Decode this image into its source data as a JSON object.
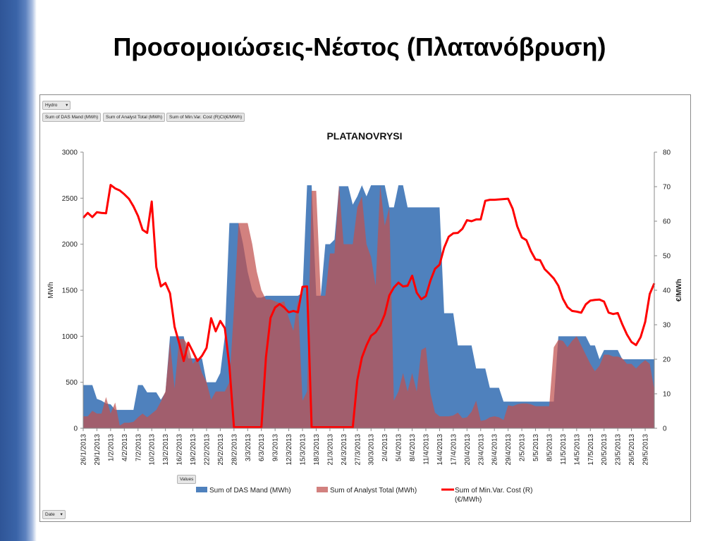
{
  "slide": {
    "title": "Προσομοιώσεις-Νέστος (Πλατανόβρυση)"
  },
  "pivot": {
    "filter_field": "Hydro",
    "value_fields": [
      "Sum of DAS Mand  (MWh)",
      "Sum of Analyst Total (MWh)",
      "Sum of Min.Var. Cost (R)CI(€/MWh)"
    ],
    "values_button": "Values",
    "date_button": "Date"
  },
  "chart_data": {
    "type": "area",
    "title": "PLATANOVRYSI",
    "ylabel": "MWh",
    "y2label": "€/MWh",
    "ylim": [
      0,
      3000
    ],
    "y2lim": [
      0,
      80
    ],
    "yticks": [
      0,
      500,
      1000,
      1500,
      2000,
      2500,
      3000
    ],
    "y2ticks": [
      0,
      10,
      20,
      30,
      40,
      50,
      60,
      70,
      80
    ],
    "grid": false,
    "legend": "bottom",
    "x_tick_labels": [
      "26/1/2013",
      "29/1/2013",
      "1/2/2013",
      "4/2/2013",
      "7/2/2013",
      "10/2/2013",
      "13/2/2013",
      "16/2/2013",
      "19/2/2013",
      "22/2/2013",
      "25/2/2013",
      "28/2/2013",
      "3/3/2013",
      "6/3/2013",
      "9/3/2013",
      "12/3/2013",
      "15/3/2013",
      "18/3/2013",
      "21/3/2013",
      "24/3/2013",
      "27/3/2013",
      "30/3/2013",
      "2/4/2013",
      "5/4/2013",
      "8/4/2013",
      "11/4/2013",
      "14/4/2013",
      "17/4/2013",
      "20/4/2013",
      "23/4/2013",
      "26/4/2013",
      "29/4/2013",
      "2/5/2013",
      "5/5/2013",
      "8/5/2013",
      "11/5/2013",
      "14/5/2013",
      "17/5/2013",
      "20/5/2013",
      "23/5/2013",
      "26/5/2013",
      "29/5/2013"
    ],
    "x_start": "26/1/2013",
    "series": [
      {
        "name": "Sum of DAS Mand  (MWh)",
        "type": "area",
        "axis": "left",
        "color": "#4f81bd",
        "values": [
          470,
          470,
          470,
          320,
          300,
          270,
          260,
          200,
          200,
          200,
          200,
          200,
          470,
          470,
          390,
          390,
          390,
          310,
          390,
          1000,
          1000,
          1000,
          1000,
          760,
          760,
          760,
          760,
          500,
          500,
          500,
          600,
          1000,
          2230,
          2230,
          2230,
          2000,
          1700,
          1500,
          1420,
          1420,
          1440,
          1440,
          1440,
          1440,
          1440,
          1440,
          1440,
          1440,
          1470,
          2640,
          2640,
          1440,
          1440,
          2000,
          2000,
          2050,
          2630,
          2630,
          2630,
          2430,
          2520,
          2640,
          2520,
          2640,
          2640,
          2640,
          2640,
          2400,
          2400,
          2640,
          2640,
          2400,
          2400,
          2400,
          2400,
          2400,
          2400,
          2400,
          2400,
          1250,
          1250,
          1250,
          900,
          900,
          900,
          900,
          650,
          650,
          650,
          440,
          440,
          440,
          290,
          290,
          290,
          290,
          290,
          290,
          290,
          290,
          290,
          290,
          290,
          290,
          1000,
          1000,
          1000,
          1000,
          1000,
          1000,
          1000,
          900,
          900,
          750,
          850,
          850,
          850,
          850,
          750,
          750,
          750,
          750,
          750,
          750,
          750,
          750
        ]
      },
      {
        "name": "Sum of Analyst Total (MWh)",
        "type": "area",
        "axis": "left",
        "color": "#c0504d",
        "values": [
          130,
          130,
          190,
          160,
          160,
          340,
          160,
          280,
          30,
          60,
          60,
          70,
          120,
          160,
          120,
          160,
          200,
          290,
          400,
          940,
          430,
          970,
          970,
          900,
          700,
          760,
          600,
          500,
          310,
          400,
          400,
          400,
          500,
          1300,
          2230,
          2230,
          2230,
          2000,
          1700,
          1500,
          1400,
          1400,
          1380,
          1360,
          1380,
          1200,
          1060,
          1400,
          300,
          400,
          2580,
          2580,
          1440,
          1440,
          1900,
          1900,
          2640,
          2000,
          2000,
          2000,
          2400,
          2520,
          2000,
          1860,
          1550,
          2640,
          2200,
          2400,
          300,
          400,
          600,
          400,
          600,
          400,
          850,
          880,
          380,
          170,
          130,
          130,
          130,
          140,
          170,
          110,
          120,
          180,
          300,
          80,
          90,
          120,
          130,
          120,
          90,
          250,
          240,
          260,
          270,
          270,
          260,
          240,
          240,
          240,
          240,
          880,
          960,
          950,
          880,
          950,
          1000,
          900,
          800,
          700,
          620,
          680,
          800,
          800,
          780,
          780,
          760,
          700,
          700,
          650,
          700,
          740,
          700,
          420
        ]
      },
      {
        "name": "Sum of Min.Var. Cost (R)\n(€/MWh)",
        "type": "line",
        "axis": "right",
        "color": "#ff0000",
        "values": [
          61,
          62.4,
          61.2,
          62.6,
          62.4,
          62.3,
          70.5,
          69.5,
          68.9,
          67.8,
          66.5,
          64.3,
          61.5,
          57.5,
          56.6,
          65.7,
          46.7,
          41.1,
          42.1,
          39.1,
          29.4,
          24.7,
          19.5,
          24.8,
          22.2,
          19.5,
          21,
          23.3,
          31.9,
          28.1,
          31.1,
          29,
          18,
          0.3,
          0.3,
          0.3,
          0.3,
          0.3,
          0.3,
          0.3,
          20.6,
          32,
          35,
          36,
          35,
          33.6,
          34,
          33.6,
          41,
          41.1,
          0.3,
          0.3,
          0.3,
          0.3,
          0.3,
          0.3,
          0.3,
          0.3,
          0.3,
          0.3,
          14,
          20.5,
          24,
          26.8,
          27.8,
          29.8,
          33,
          38.5,
          40.8,
          42.2,
          41.1,
          41.3,
          44.2,
          39.3,
          37.4,
          38.3,
          42.8,
          46.2,
          47.4,
          52.3,
          55.5,
          56.5,
          56.6,
          57.8,
          60.3,
          60,
          60.5,
          60.5,
          65.9,
          66.2,
          66.2,
          66.3,
          66.4,
          66.5,
          63.6,
          58.5,
          55.3,
          54.5,
          51.3,
          48.9,
          48.7,
          46.1,
          44.8,
          43.4,
          41.3,
          37.5,
          35.1,
          34,
          33.8,
          33.5,
          35.9,
          37,
          37.2,
          37.3,
          36.7,
          33.5,
          33.1,
          33.4,
          30.1,
          27.2,
          25,
          24.1,
          26.4,
          30.8,
          38.9,
          42
        ]
      }
    ]
  }
}
